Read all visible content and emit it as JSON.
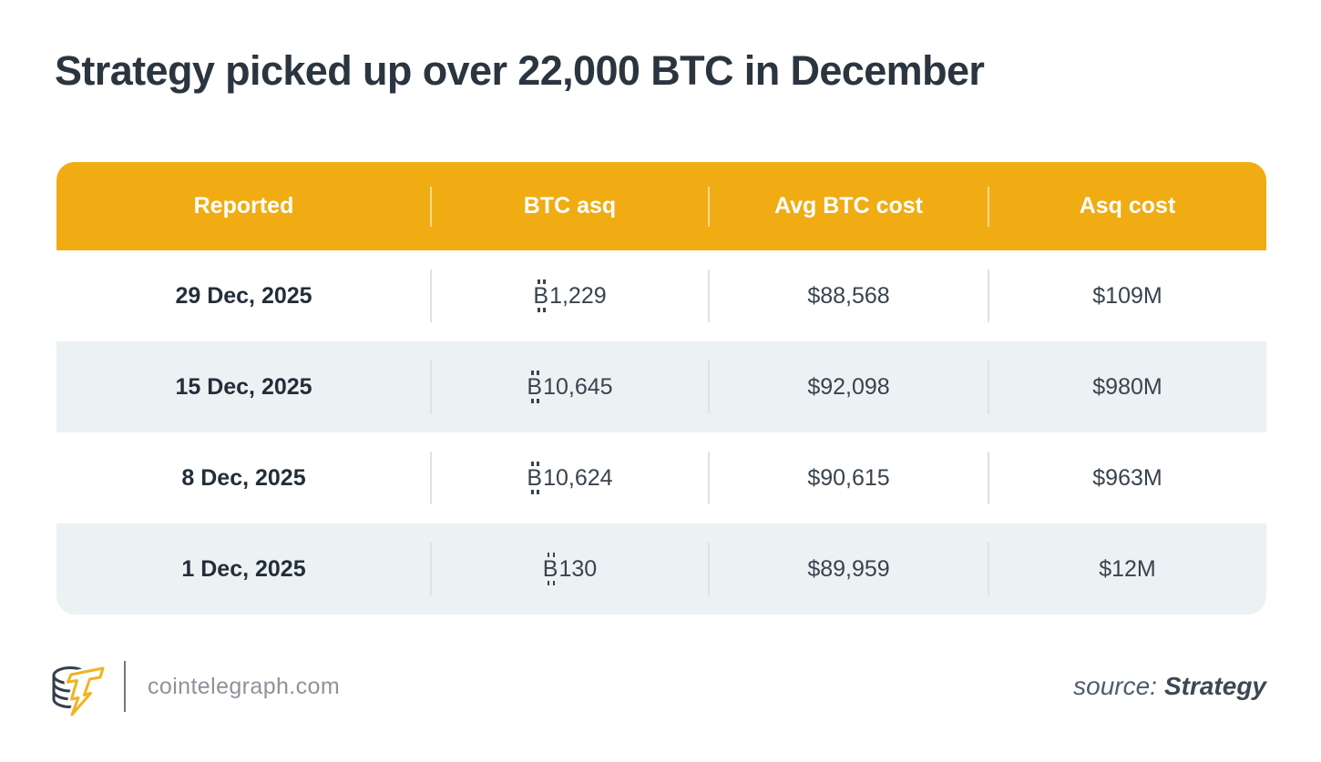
{
  "chart_data": {
    "type": "table",
    "title": "Strategy picked up over 22,000 BTC in December",
    "columns": [
      "Reported",
      "BTC asq",
      "Avg BTC cost",
      "Asq cost"
    ],
    "rows": [
      [
        "29 Dec, 2025",
        "₿1,229",
        "$88,568",
        "$109M"
      ],
      [
        "15 Dec, 2025",
        "₿10,645",
        "$92,098",
        "$980M"
      ],
      [
        "8 Dec, 2025",
        "₿10,624",
        "$90,615",
        "$963M"
      ],
      [
        "1 Dec, 2025",
        "₿130",
        "$89,959",
        "$12M"
      ]
    ],
    "source": "Strategy",
    "legend_position": "none",
    "grid": false
  },
  "footer": {
    "site": "cointelegraph.com",
    "source_label": "source:",
    "source_value": "Strategy",
    "logo": "cointelegraph-coin-stack-lightning-logo"
  },
  "colors": {
    "brand_yellow": "#F0AC12",
    "logo_yellow": "#F1B31F",
    "row_alt_bg": "#ECF2F3",
    "header_text": "#FFFFFF",
    "title_text": "#2B3540",
    "cell_text": "#39434D",
    "date_text": "#232E38",
    "divider_row": "#DCE2E5",
    "footer_gray": "#8D9399",
    "source_text": "#515D68"
  }
}
